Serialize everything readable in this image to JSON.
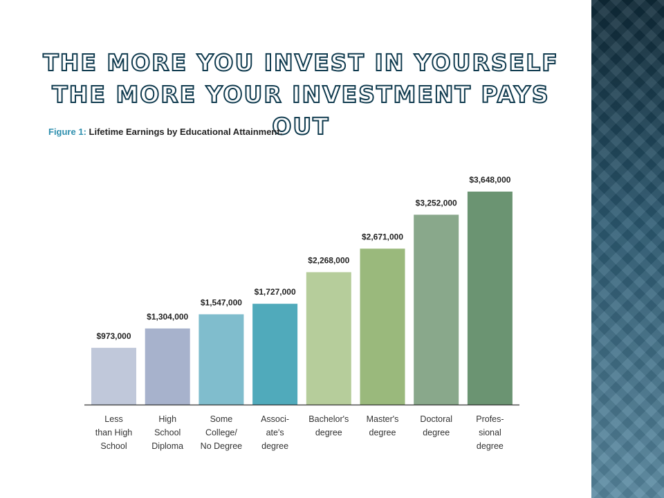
{
  "slide": {
    "title": "The more you invest in yourself the more your investment pays out"
  },
  "figure": {
    "label": "Figure 1:",
    "caption": "Lifetime Earnings by Educational Attainment."
  },
  "theme": {
    "title_outline": "#0f3a4e",
    "caption_accent": "#2e8fae"
  },
  "chart_data": {
    "type": "bar",
    "title": "",
    "xlabel": "",
    "ylabel": "",
    "ylim": [
      0,
      3648000
    ],
    "grid": false,
    "legend": "none",
    "categories": [
      [
        "Less",
        "than High",
        "School"
      ],
      [
        "High",
        "School",
        "Diploma"
      ],
      [
        "Some",
        "College/",
        "No Degree"
      ],
      [
        "Associ-",
        "ate's",
        "degree"
      ],
      [
        "Bachelor's",
        "degree"
      ],
      [
        "Master's",
        "degree"
      ],
      [
        "Doctoral",
        "degree"
      ],
      [
        "Profes-",
        "sional",
        "degree"
      ]
    ],
    "values": [
      973000,
      1304000,
      1547000,
      1727000,
      2268000,
      2671000,
      3252000,
      3648000
    ],
    "value_labels": [
      "$973,000",
      "$1,304,000",
      "$1,547,000",
      "$1,727,000",
      "$2,268,000",
      "$2,671,000",
      "$3,252,000",
      "$3,648,000"
    ],
    "colors": [
      "#c0c8da",
      "#a7b2cc",
      "#80bdcd",
      "#50aabb",
      "#b6cd9b",
      "#9ab97c",
      "#89a88b",
      "#6b9472"
    ]
  }
}
